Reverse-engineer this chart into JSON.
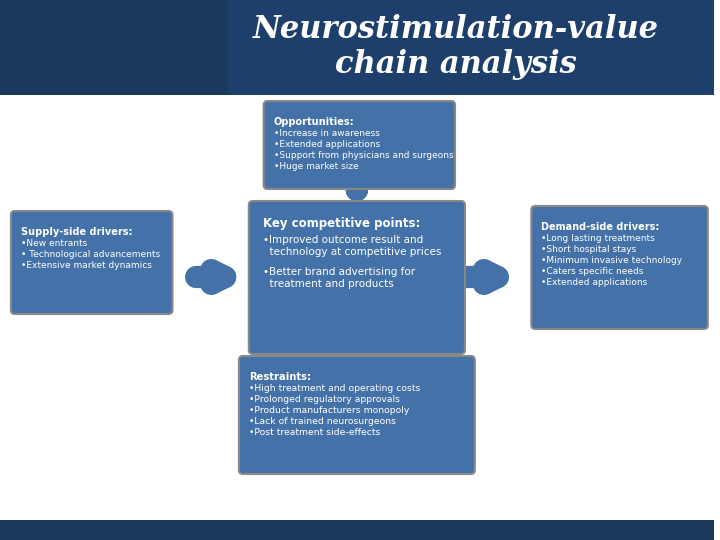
{
  "title": "Neurostimulation-value\nchain analysis",
  "title_color": "#FFFFFF",
  "header_bg_dark": "#1a3a5c",
  "header_bg_medium": "#2a5a8c",
  "bg_color": "#FFFFFF",
  "box_color_dark": "#4472a8",
  "box_color_medium": "#5b8fc4",
  "center_box_color": "#4472a8",
  "arrow_color": "#4472a8",
  "text_color": "#FFFFFF",
  "center_box": {
    "title": "Key competitive points:",
    "bullets": [
      "•Improved outcome result and\n  technology at competitive prices",
      "•Better brand advertising for\n  treatment and products"
    ]
  },
  "top_box": {
    "title": "Opportunities:",
    "bullets": [
      "•Increase in awareness",
      "•Extended applications",
      "•Support from physicians and surgeons",
      "•Huge market size"
    ]
  },
  "bottom_box": {
    "title": "Restraints:",
    "bullets": [
      "•High treatment and operating costs",
      "•Prolonged regulatory approvals",
      "•Product manufacturers monopoly",
      "•Lack of trained neurosurgeons",
      "•Post treatment side-effects"
    ]
  },
  "left_box": {
    "title": "Supply-side drivers:",
    "bullets": [
      "•New entrants",
      "• Technological advancements",
      "•Extensive market dynamics"
    ]
  },
  "right_box": {
    "title": "Demand-side drivers:",
    "bullets": [
      "•Long lasting treatments",
      "•Short hospital stays",
      "•Minimum invasive technology",
      "•Caters specific needs",
      "•Extended applications"
    ]
  }
}
